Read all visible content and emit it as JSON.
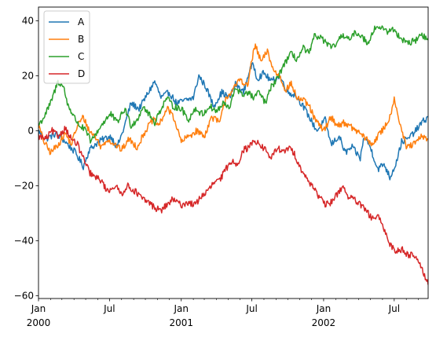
{
  "chart_data": {
    "type": "line",
    "title": "",
    "xlabel": "",
    "ylabel": "",
    "ylim": [
      -61,
      45
    ],
    "xlim": [
      "2000-01-01",
      "2002-09-26"
    ],
    "yticks": [
      40,
      20,
      0,
      -20,
      -40,
      -60
    ],
    "ytick_labels": [
      "40",
      "20",
      "0",
      "−20",
      "−40",
      "−60"
    ],
    "xticks_major": [
      {
        "date": "2000-01-01",
        "label": "Jan",
        "year": "2000"
      },
      {
        "date": "2000-07-01",
        "label": "Jul",
        "year": ""
      },
      {
        "date": "2001-01-01",
        "label": "Jan",
        "year": "2001"
      },
      {
        "date": "2001-07-01",
        "label": "Jul",
        "year": ""
      },
      {
        "date": "2002-01-01",
        "label": "Jan",
        "year": "2002"
      },
      {
        "date": "2002-07-01",
        "label": "Jul",
        "year": ""
      }
    ],
    "minor_tick_months": [
      "2000-02-01",
      "2000-03-01",
      "2000-04-01",
      "2000-05-01",
      "2000-06-01",
      "2000-08-01",
      "2000-09-01",
      "2000-10-01",
      "2000-11-01",
      "2000-12-01",
      "2001-02-01",
      "2001-03-01",
      "2001-04-01",
      "2001-05-01",
      "2001-06-01",
      "2001-08-01",
      "2001-09-01",
      "2001-10-01",
      "2001-11-01",
      "2001-12-01",
      "2002-02-01",
      "2002-03-01",
      "2002-04-01",
      "2002-05-01",
      "2002-06-01",
      "2002-08-01",
      "2002-09-01"
    ],
    "legend_position": "top-left",
    "grid": false,
    "series": [
      {
        "name": "A",
        "color": "#1f77b4",
        "points": [
          [
            "2000-01-01",
            0
          ],
          [
            "2000-01-20",
            -3
          ],
          [
            "2000-02-15",
            -1
          ],
          [
            "2000-03-10",
            -4
          ],
          [
            "2000-04-05",
            -8
          ],
          [
            "2000-04-25",
            -13
          ],
          [
            "2000-05-10",
            -7
          ],
          [
            "2000-05-25",
            -5
          ],
          [
            "2000-06-15",
            -3
          ],
          [
            "2000-07-05",
            -2
          ],
          [
            "2000-07-20",
            -6
          ],
          [
            "2000-08-05",
            0
          ],
          [
            "2000-08-25",
            10
          ],
          [
            "2000-09-15",
            8
          ],
          [
            "2000-10-05",
            13
          ],
          [
            "2000-10-25",
            18
          ],
          [
            "2000-11-10",
            12
          ],
          [
            "2000-12-01",
            14
          ],
          [
            "2000-12-20",
            10
          ],
          [
            "2001-01-10",
            11
          ],
          [
            "2001-02-01",
            12
          ],
          [
            "2001-02-15",
            20
          ],
          [
            "2001-03-05",
            16
          ],
          [
            "2001-03-25",
            9
          ],
          [
            "2001-04-15",
            14
          ],
          [
            "2001-05-05",
            12
          ],
          [
            "2001-05-20",
            17
          ],
          [
            "2001-06-10",
            14
          ],
          [
            "2001-06-25",
            22
          ],
          [
            "2001-07-05",
            24
          ],
          [
            "2001-07-15",
            19
          ],
          [
            "2001-08-01",
            21
          ],
          [
            "2001-08-20",
            18
          ],
          [
            "2001-09-10",
            20
          ],
          [
            "2001-10-01",
            14
          ],
          [
            "2001-10-20",
            13
          ],
          [
            "2001-11-05",
            10
          ],
          [
            "2001-11-25",
            5
          ],
          [
            "2001-12-15",
            0
          ],
          [
            "2002-01-05",
            4
          ],
          [
            "2002-01-20",
            -5
          ],
          [
            "2002-02-10",
            -2
          ],
          [
            "2002-02-25",
            -8
          ],
          [
            "2002-03-15",
            -6
          ],
          [
            "2002-04-05",
            -10
          ],
          [
            "2002-04-15",
            -2
          ],
          [
            "2002-05-01",
            -6
          ],
          [
            "2002-05-20",
            -14
          ],
          [
            "2002-06-05",
            -12
          ],
          [
            "2002-06-20",
            -17
          ],
          [
            "2002-07-05",
            -12
          ],
          [
            "2002-07-20",
            -4
          ],
          [
            "2002-08-05",
            -3
          ],
          [
            "2002-08-25",
            0
          ],
          [
            "2002-09-10",
            3
          ],
          [
            "2002-09-26",
            5
          ]
        ]
      },
      {
        "name": "B",
        "color": "#ff7f0e",
        "points": [
          [
            "2000-01-01",
            2
          ],
          [
            "2000-01-15",
            -4
          ],
          [
            "2000-02-01",
            -8
          ],
          [
            "2000-02-20",
            -5
          ],
          [
            "2000-03-10",
            -1
          ],
          [
            "2000-03-25",
            -5
          ],
          [
            "2000-04-10",
            2
          ],
          [
            "2000-04-25",
            5
          ],
          [
            "2000-05-10",
            0
          ],
          [
            "2000-05-25",
            -2
          ],
          [
            "2000-06-10",
            -6
          ],
          [
            "2000-06-25",
            -3
          ],
          [
            "2000-07-15",
            -5
          ],
          [
            "2000-08-01",
            -7
          ],
          [
            "2000-08-20",
            -3
          ],
          [
            "2000-09-10",
            -6
          ],
          [
            "2000-10-01",
            0
          ],
          [
            "2000-10-20",
            4
          ],
          [
            "2000-11-05",
            2
          ],
          [
            "2000-11-25",
            8
          ],
          [
            "2000-12-10",
            6
          ],
          [
            "2001-01-01",
            -4
          ],
          [
            "2001-01-20",
            -2
          ],
          [
            "2001-02-10",
            0
          ],
          [
            "2001-03-01",
            -2
          ],
          [
            "2001-03-20",
            5
          ],
          [
            "2001-04-10",
            3
          ],
          [
            "2001-04-25",
            12
          ],
          [
            "2001-05-15",
            15
          ],
          [
            "2001-06-01",
            19
          ],
          [
            "2001-06-20",
            16
          ],
          [
            "2001-07-01",
            26
          ],
          [
            "2001-07-10",
            31
          ],
          [
            "2001-07-25",
            25
          ],
          [
            "2001-08-10",
            29
          ],
          [
            "2001-08-25",
            22
          ],
          [
            "2001-09-10",
            20
          ],
          [
            "2001-09-25",
            15
          ],
          [
            "2001-10-10",
            17
          ],
          [
            "2001-10-25",
            12
          ],
          [
            "2001-11-10",
            11
          ],
          [
            "2001-11-25",
            9
          ],
          [
            "2001-12-10",
            4
          ],
          [
            "2002-01-01",
            0
          ],
          [
            "2002-01-20",
            5
          ],
          [
            "2002-02-05",
            2
          ],
          [
            "2002-02-25",
            3
          ],
          [
            "2002-03-15",
            1
          ],
          [
            "2002-04-05",
            -1
          ],
          [
            "2002-04-20",
            -3
          ],
          [
            "2002-05-05",
            -5
          ],
          [
            "2002-05-20",
            -2
          ],
          [
            "2002-06-05",
            1
          ],
          [
            "2002-06-20",
            5
          ],
          [
            "2002-07-01",
            12
          ],
          [
            "2002-07-15",
            3
          ],
          [
            "2002-08-01",
            -6
          ],
          [
            "2002-08-20",
            -5
          ],
          [
            "2002-09-10",
            -2
          ],
          [
            "2002-09-26",
            -3
          ]
        ]
      },
      {
        "name": "C",
        "color": "#2ca02c",
        "points": [
          [
            "2000-01-01",
            2
          ],
          [
            "2000-01-15",
            5
          ],
          [
            "2000-02-01",
            10
          ],
          [
            "2000-02-20",
            18
          ],
          [
            "2000-03-05",
            16
          ],
          [
            "2000-03-15",
            10
          ],
          [
            "2000-04-01",
            5
          ],
          [
            "2000-04-15",
            2
          ],
          [
            "2000-05-01",
            0
          ],
          [
            "2000-05-15",
            -4
          ],
          [
            "2000-06-01",
            0
          ],
          [
            "2000-06-20",
            4
          ],
          [
            "2000-07-05",
            6
          ],
          [
            "2000-07-20",
            3
          ],
          [
            "2000-08-10",
            8
          ],
          [
            "2000-08-25",
            2
          ],
          [
            "2000-09-10",
            4
          ],
          [
            "2000-09-25",
            9
          ],
          [
            "2000-10-10",
            6
          ],
          [
            "2000-10-25",
            3
          ],
          [
            "2000-11-10",
            8
          ],
          [
            "2000-11-25",
            12
          ],
          [
            "2000-12-10",
            9
          ],
          [
            "2001-01-01",
            8
          ],
          [
            "2001-01-20",
            4
          ],
          [
            "2001-02-05",
            8
          ],
          [
            "2001-02-25",
            6
          ],
          [
            "2001-03-15",
            9
          ],
          [
            "2001-04-01",
            7
          ],
          [
            "2001-04-20",
            10
          ],
          [
            "2001-05-05",
            8
          ],
          [
            "2001-05-20",
            16
          ],
          [
            "2001-06-05",
            13
          ],
          [
            "2001-06-20",
            14
          ],
          [
            "2001-07-05",
            12
          ],
          [
            "2001-07-20",
            14
          ],
          [
            "2001-08-05",
            10
          ],
          [
            "2001-08-20",
            16
          ],
          [
            "2001-09-05",
            19
          ],
          [
            "2001-09-20",
            24
          ],
          [
            "2001-10-10",
            28
          ],
          [
            "2001-10-25",
            26
          ],
          [
            "2001-11-10",
            30
          ],
          [
            "2001-11-25",
            28
          ],
          [
            "2001-12-10",
            35
          ],
          [
            "2002-01-01",
            33
          ],
          [
            "2002-01-20",
            30
          ],
          [
            "2002-02-05",
            32
          ],
          [
            "2002-02-20",
            35
          ],
          [
            "2002-03-10",
            33
          ],
          [
            "2002-03-25",
            36
          ],
          [
            "2002-04-10",
            34
          ],
          [
            "2002-04-25",
            32
          ],
          [
            "2002-05-10",
            37
          ],
          [
            "2002-05-25",
            38
          ],
          [
            "2002-06-10",
            36
          ],
          [
            "2002-06-25",
            37
          ],
          [
            "2002-07-10",
            35
          ],
          [
            "2002-07-25",
            33
          ],
          [
            "2002-08-10",
            32
          ],
          [
            "2002-08-25",
            33
          ],
          [
            "2002-09-10",
            35
          ],
          [
            "2002-09-26",
            33
          ]
        ]
      },
      {
        "name": "D",
        "color": "#d62728",
        "points": [
          [
            "2000-01-01",
            -2
          ],
          [
            "2000-01-20",
            -3
          ],
          [
            "2000-02-05",
            0
          ],
          [
            "2000-02-20",
            -2
          ],
          [
            "2000-03-10",
            1
          ],
          [
            "2000-03-25",
            -3
          ],
          [
            "2000-04-10",
            -5
          ],
          [
            "2000-04-25",
            -10
          ],
          [
            "2000-05-10",
            -15
          ],
          [
            "2000-05-25",
            -17
          ],
          [
            "2000-06-10",
            -18
          ],
          [
            "2000-06-25",
            -22
          ],
          [
            "2000-07-15",
            -20
          ],
          [
            "2000-08-01",
            -23
          ],
          [
            "2000-08-15",
            -20
          ],
          [
            "2000-09-05",
            -22
          ],
          [
            "2000-09-25",
            -25
          ],
          [
            "2000-10-10",
            -26
          ],
          [
            "2000-10-25",
            -28
          ],
          [
            "2000-11-10",
            -29
          ],
          [
            "2000-11-25",
            -27
          ],
          [
            "2000-12-10",
            -25
          ],
          [
            "2001-01-01",
            -27
          ],
          [
            "2001-01-20",
            -26
          ],
          [
            "2001-02-05",
            -27
          ],
          [
            "2001-02-20",
            -24
          ],
          [
            "2001-03-10",
            -22
          ],
          [
            "2001-03-25",
            -19
          ],
          [
            "2001-04-10",
            -18
          ],
          [
            "2001-04-25",
            -14
          ],
          [
            "2001-05-10",
            -11
          ],
          [
            "2001-05-25",
            -12
          ],
          [
            "2001-06-10",
            -7
          ],
          [
            "2001-06-25",
            -6
          ],
          [
            "2001-07-05",
            -3
          ],
          [
            "2001-07-20",
            -5
          ],
          [
            "2001-08-05",
            -7
          ],
          [
            "2001-08-20",
            -10
          ],
          [
            "2001-09-05",
            -6
          ],
          [
            "2001-09-20",
            -8
          ],
          [
            "2001-10-05",
            -6
          ],
          [
            "2001-10-20",
            -9
          ],
          [
            "2001-11-05",
            -14
          ],
          [
            "2001-11-20",
            -18
          ],
          [
            "2001-12-05",
            -20
          ],
          [
            "2001-12-20",
            -24
          ],
          [
            "2002-01-05",
            -27
          ],
          [
            "2002-01-20",
            -26
          ],
          [
            "2002-02-05",
            -23
          ],
          [
            "2002-02-20",
            -20
          ],
          [
            "2002-03-05",
            -24
          ],
          [
            "2002-03-20",
            -25
          ],
          [
            "2002-04-05",
            -27
          ],
          [
            "2002-04-20",
            -29
          ],
          [
            "2002-05-05",
            -32
          ],
          [
            "2002-05-20",
            -31
          ],
          [
            "2002-06-05",
            -36
          ],
          [
            "2002-06-20",
            -41
          ],
          [
            "2002-07-05",
            -44
          ],
          [
            "2002-07-20",
            -43
          ],
          [
            "2002-08-05",
            -45
          ],
          [
            "2002-08-20",
            -45
          ],
          [
            "2002-09-05",
            -48
          ],
          [
            "2002-09-15",
            -52
          ],
          [
            "2002-09-26",
            -56
          ]
        ]
      }
    ]
  }
}
